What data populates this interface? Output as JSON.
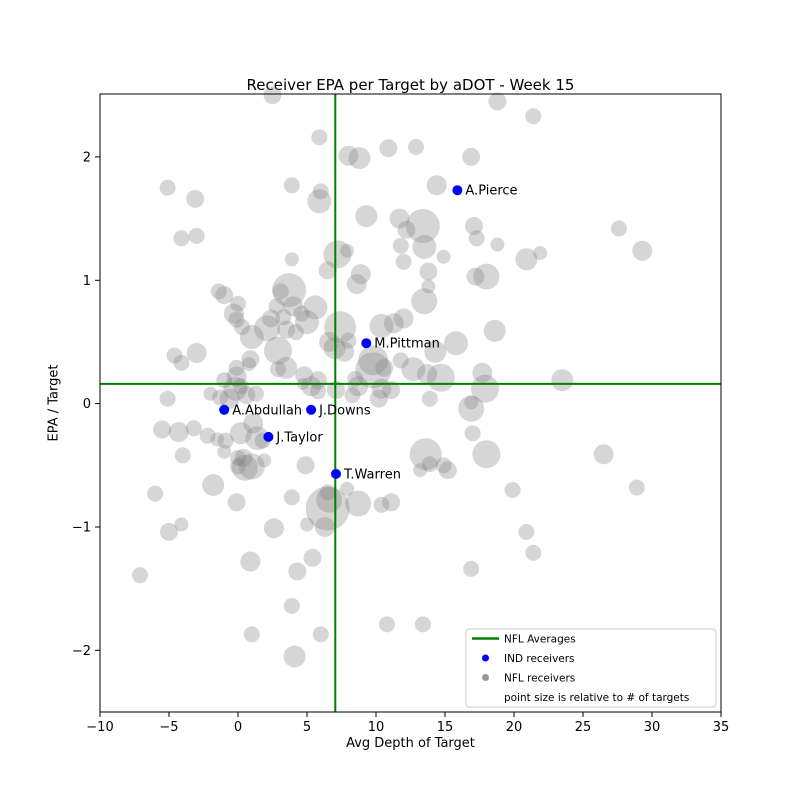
{
  "chart_data": {
    "type": "scatter",
    "title": "Receiver EPA per Target by aDOT - Week 15",
    "xlabel": "Avg Depth of Target",
    "ylabel": "EPA / Target",
    "xlim": [
      -10,
      35
    ],
    "ylim": [
      -2.5,
      2.51
    ],
    "grid": false,
    "xticks": [
      {
        "v": -10,
        "label": "−10"
      },
      {
        "v": -5,
        "label": "−5"
      },
      {
        "v": 0,
        "label": "0"
      },
      {
        "v": 5,
        "label": "5"
      },
      {
        "v": 10,
        "label": "10"
      },
      {
        "v": 15,
        "label": "15"
      },
      {
        "v": 20,
        "label": "20"
      },
      {
        "v": 25,
        "label": "25"
      },
      {
        "v": 30,
        "label": "30"
      },
      {
        "v": 35,
        "label": "35"
      }
    ],
    "yticks": [
      {
        "v": -2,
        "label": "−2"
      },
      {
        "v": -1,
        "label": "−1"
      },
      {
        "v": 0,
        "label": "0"
      },
      {
        "v": 1,
        "label": "1"
      },
      {
        "v": 2,
        "label": "2"
      }
    ],
    "nfl_averages": {
      "adot": 7.05,
      "epa_per_target": 0.16,
      "color": "#008000",
      "line_width": 2
    },
    "ind_receivers": {
      "color": "#0000ff",
      "marker_radius": 5,
      "label_font_px": 13,
      "players": [
        {
          "name": "A.Pierce",
          "x": 15.9,
          "y": 1.73
        },
        {
          "name": "M.Pittman",
          "x": 9.3,
          "y": 0.49
        },
        {
          "name": "J.Downs",
          "x": 5.3,
          "y": -0.05
        },
        {
          "name": "A.Abdullah",
          "x": -1.0,
          "y": -0.05
        },
        {
          "name": "J.Taylor",
          "x": 2.2,
          "y": -0.27
        },
        {
          "name": "T.Warren",
          "x": 7.1,
          "y": -0.57
        }
      ]
    },
    "nfl_receivers": {
      "color": "#808080",
      "opacity": 0.32,
      "points": [
        [
          2.5,
          2.5,
          9
        ],
        [
          5.9,
          2.16,
          8
        ],
        [
          8.0,
          2.01,
          10
        ],
        [
          8.8,
          1.99,
          11
        ],
        [
          10.9,
          2.07,
          9
        ],
        [
          -5.1,
          1.75,
          8
        ],
        [
          -3.1,
          1.66,
          9
        ],
        [
          3.9,
          1.77,
          8
        ],
        [
          6.0,
          1.72,
          8
        ],
        [
          5.9,
          1.64,
          12
        ],
        [
          -4.1,
          1.34,
          8
        ],
        [
          -3.0,
          1.36,
          8
        ],
        [
          9.3,
          1.52,
          11
        ],
        [
          11.7,
          1.5,
          10
        ],
        [
          12.2,
          1.41,
          9
        ],
        [
          11.8,
          1.28,
          8
        ],
        [
          12.0,
          1.15,
          8
        ],
        [
          7.2,
          1.21,
          14
        ],
        [
          7.9,
          1.24,
          7
        ],
        [
          3.9,
          1.17,
          7
        ],
        [
          6.5,
          1.08,
          9
        ],
        [
          8.9,
          1.05,
          10
        ],
        [
          8.6,
          0.97,
          10
        ],
        [
          -1.4,
          0.91,
          8
        ],
        [
          -1.0,
          0.88,
          9
        ],
        [
          3.7,
          0.92,
          17
        ],
        [
          3.1,
          0.91,
          8
        ],
        [
          0.0,
          0.81,
          8
        ],
        [
          2.8,
          0.79,
          8
        ],
        [
          4.0,
          0.79,
          10
        ],
        [
          5.6,
          0.78,
          12
        ],
        [
          4.6,
          0.73,
          8
        ],
        [
          -0.3,
          0.73,
          10
        ],
        [
          -0.1,
          0.68,
          8
        ],
        [
          2.4,
          0.69,
          9
        ],
        [
          3.3,
          0.7,
          8
        ],
        [
          5.0,
          0.66,
          12
        ],
        [
          0.3,
          0.62,
          8
        ],
        [
          2.1,
          0.61,
          13
        ],
        [
          3.5,
          0.6,
          9
        ],
        [
          4.2,
          0.58,
          8
        ],
        [
          7.4,
          0.62,
          16
        ],
        [
          8.0,
          0.51,
          8
        ],
        [
          10.4,
          0.63,
          12
        ],
        [
          11.3,
          0.65,
          10
        ],
        [
          12.0,
          0.69,
          10
        ],
        [
          1.0,
          0.54,
          12
        ],
        [
          2.9,
          0.43,
          14
        ],
        [
          3.5,
          0.29,
          11
        ],
        [
          2.9,
          0.28,
          8
        ],
        [
          0.9,
          0.36,
          9
        ],
        [
          0.8,
          0.32,
          7
        ],
        [
          -0.1,
          0.29,
          8
        ],
        [
          -0.1,
          0.22,
          10
        ],
        [
          -1.0,
          0.19,
          8
        ],
        [
          0.2,
          0.14,
          8
        ],
        [
          -4.6,
          0.39,
          8
        ],
        [
          -4.1,
          0.33,
          8
        ],
        [
          -3.0,
          0.41,
          10
        ],
        [
          4.8,
          0.23,
          9
        ],
        [
          5.8,
          0.19,
          9
        ],
        [
          6.6,
          0.5,
          10
        ],
        [
          7.0,
          0.45,
          11
        ],
        [
          7.7,
          0.42,
          10
        ],
        [
          9.8,
          0.35,
          15
        ],
        [
          9.8,
          0.27,
          18
        ],
        [
          10.6,
          0.29,
          9
        ],
        [
          11.8,
          0.35,
          8
        ],
        [
          10.4,
          0.12,
          10
        ],
        [
          11.1,
          0.11,
          9
        ],
        [
          8.5,
          0.2,
          8
        ],
        [
          8.7,
          0.14,
          10
        ],
        [
          4.7,
          0.16,
          6
        ],
        [
          5.3,
          0.14,
          10
        ],
        [
          5.8,
          0.1,
          8
        ],
        [
          -2.0,
          0.08,
          7
        ],
        [
          -1.3,
          0.05,
          8
        ],
        [
          -0.6,
          0.04,
          10
        ],
        [
          -0.2,
          0.12,
          12
        ],
        [
          -5.1,
          0.04,
          8
        ],
        [
          0.6,
          0.07,
          9
        ],
        [
          1.3,
          0.08,
          8
        ],
        [
          7.1,
          0.11,
          9
        ],
        [
          8.3,
          0.07,
          8
        ],
        [
          10.2,
          0.04,
          9
        ],
        [
          18.8,
          2.45,
          9
        ],
        [
          21.4,
          2.33,
          8
        ],
        [
          12.9,
          2.08,
          8
        ],
        [
          16.9,
          2.0,
          9
        ],
        [
          14.4,
          1.77,
          10
        ],
        [
          13.4,
          1.44,
          17
        ],
        [
          17.1,
          1.44,
          9
        ],
        [
          17.3,
          1.34,
          8
        ],
        [
          27.6,
          1.42,
          8
        ],
        [
          18.8,
          1.29,
          7
        ],
        [
          13.5,
          1.27,
          12
        ],
        [
          14.9,
          1.19,
          7
        ],
        [
          20.9,
          1.17,
          11
        ],
        [
          21.9,
          1.22,
          7
        ],
        [
          29.3,
          1.24,
          10
        ],
        [
          13.8,
          1.07,
          9
        ],
        [
          17.2,
          1.03,
          9
        ],
        [
          18.0,
          1.03,
          13
        ],
        [
          13.8,
          0.95,
          7
        ],
        [
          13.5,
          0.83,
          13
        ],
        [
          18.6,
          0.59,
          11
        ],
        [
          15.8,
          0.49,
          12
        ],
        [
          14.3,
          0.42,
          11
        ],
        [
          12.7,
          0.28,
          12
        ],
        [
          13.7,
          0.24,
          10
        ],
        [
          14.7,
          0.21,
          14
        ],
        [
          17.7,
          0.25,
          10
        ],
        [
          17.9,
          0.12,
          14
        ],
        [
          23.5,
          0.19,
          11
        ],
        [
          13.9,
          0.04,
          8
        ],
        [
          16.9,
          0.01,
          7
        ],
        [
          -5.5,
          -0.21,
          9
        ],
        [
          -4.3,
          -0.23,
          10
        ],
        [
          -3.2,
          -0.2,
          8
        ],
        [
          -2.2,
          -0.26,
          8
        ],
        [
          -1.5,
          -0.29,
          7
        ],
        [
          -0.9,
          -0.3,
          8
        ],
        [
          0.2,
          -0.24,
          11
        ],
        [
          1.1,
          -0.16,
          10
        ],
        [
          1.4,
          -0.28,
          12
        ],
        [
          1.8,
          -0.3,
          8
        ],
        [
          -4.0,
          -0.42,
          8
        ],
        [
          -1.0,
          -0.39,
          7
        ],
        [
          0.0,
          -0.44,
          8
        ],
        [
          0.4,
          -0.44,
          9
        ],
        [
          0.0,
          -0.51,
          8
        ],
        [
          0.5,
          -0.52,
          13
        ],
        [
          1.0,
          -0.51,
          13
        ],
        [
          1.9,
          -0.46,
          7
        ],
        [
          4.9,
          -0.5,
          9
        ],
        [
          -1.8,
          -0.66,
          11
        ],
        [
          -6.0,
          -0.73,
          8
        ],
        [
          -0.1,
          -0.8,
          9
        ],
        [
          3.9,
          -0.76,
          8
        ],
        [
          6.5,
          -0.72,
          8
        ],
        [
          6.6,
          -0.78,
          13
        ],
        [
          6.5,
          -0.85,
          22
        ],
        [
          7.9,
          -0.69,
          7
        ],
        [
          8.7,
          -0.81,
          13
        ],
        [
          10.4,
          -0.82,
          8
        ],
        [
          11.1,
          -0.8,
          9
        ],
        [
          -5.0,
          -1.04,
          9
        ],
        [
          -4.1,
          -0.98,
          7
        ],
        [
          2.6,
          -1.01,
          10
        ],
        [
          5.0,
          -0.98,
          7
        ],
        [
          6.3,
          -1.0,
          10
        ],
        [
          0.9,
          -1.28,
          10
        ],
        [
          5.4,
          -1.25,
          9
        ],
        [
          -7.1,
          -1.39,
          8
        ],
        [
          4.3,
          -1.36,
          9
        ],
        [
          3.9,
          -1.64,
          8
        ],
        [
          1.0,
          -1.87,
          8
        ],
        [
          6.0,
          -1.87,
          8
        ],
        [
          10.8,
          -1.79,
          8
        ],
        [
          4.1,
          -2.05,
          11
        ],
        [
          16.9,
          -0.04,
          13
        ],
        [
          17.0,
          -0.24,
          8
        ],
        [
          13.6,
          -0.41,
          16
        ],
        [
          13.2,
          -0.54,
          7
        ],
        [
          13.9,
          -0.49,
          8
        ],
        [
          14.9,
          -0.5,
          8
        ],
        [
          15.2,
          -0.54,
          9
        ],
        [
          18.0,
          -0.41,
          14
        ],
        [
          26.5,
          -0.41,
          10
        ],
        [
          19.9,
          -0.7,
          8
        ],
        [
          28.9,
          -0.68,
          8
        ],
        [
          20.9,
          -1.04,
          8
        ],
        [
          21.4,
          -1.21,
          8
        ],
        [
          16.9,
          -1.34,
          8
        ],
        [
          13.4,
          -1.79,
          8
        ]
      ]
    },
    "legend": {
      "position": "lower right",
      "border_color": "#cccccc",
      "font_px": 10.5,
      "items": [
        {
          "marker": "line",
          "color": "#008000",
          "label": "NFL Averages"
        },
        {
          "marker": "dot",
          "color": "#0000ff",
          "label": "IND receivers"
        },
        {
          "marker": "dot",
          "color": "#999999",
          "label": "NFL receivers"
        },
        {
          "marker": "none",
          "color": "",
          "label": "point size is relative to # of targets"
        }
      ]
    }
  }
}
